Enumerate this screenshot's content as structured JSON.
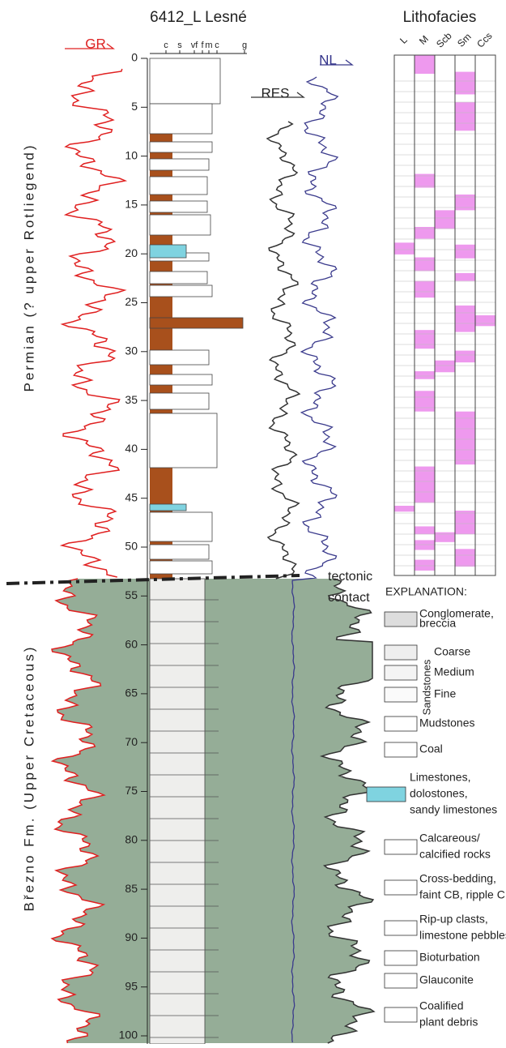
{
  "header": {
    "title": "6412_L Lesné",
    "lithofacies_title": "Lithofacies"
  },
  "curves": {
    "gr": "GR",
    "res": "RES",
    "nl": "NL"
  },
  "grain_size_labels": [
    "c",
    "s",
    "vf",
    "f",
    "m",
    "c",
    "g"
  ],
  "depth_axis": {
    "lim": [
      0,
      100
    ],
    "ticks": [
      0,
      5,
      10,
      15,
      20,
      25,
      30,
      35,
      40,
      45,
      50,
      55,
      60,
      65,
      70,
      75,
      80,
      85,
      90,
      95,
      100
    ]
  },
  "units": {
    "upper": "Permian (? upper Rotliegend)",
    "lower": "Březno Fm. (Upper Cretaceous)"
  },
  "annotation": [
    "tectonic",
    "contact"
  ],
  "lithofacies": {
    "lim": [
      0,
      53
    ],
    "columns": [
      {
        "name": "L",
        "intervals": [
          [
            19.1,
            20.3
          ],
          [
            45.9,
            46.5
          ]
        ]
      },
      {
        "name": "M",
        "intervals": [
          [
            0,
            1.9
          ],
          [
            12.1,
            13.5
          ],
          [
            17.5,
            18.7
          ],
          [
            20.6,
            22
          ],
          [
            23,
            24.7
          ],
          [
            28,
            29.9
          ],
          [
            32.2,
            33
          ],
          [
            34.2,
            36.3
          ],
          [
            41.9,
            45.6
          ],
          [
            48,
            48.8
          ],
          [
            49.4,
            50.4
          ],
          [
            51.4,
            52.5
          ]
        ]
      },
      {
        "name": "Scb",
        "intervals": [
          [
            15.8,
            17.7
          ],
          [
            31.1,
            32.3
          ],
          [
            48.6,
            49.6
          ]
        ]
      },
      {
        "name": "Sm",
        "intervals": [
          [
            1.7,
            4
          ],
          [
            4.8,
            7.7
          ],
          [
            14.2,
            15.8
          ],
          [
            19.3,
            20.7
          ],
          [
            22.2,
            23
          ],
          [
            25.5,
            28.2
          ],
          [
            30.1,
            31.3
          ],
          [
            36.3,
            41.7
          ],
          [
            46.4,
            48.8
          ],
          [
            50.3,
            52.1
          ]
        ]
      },
      {
        "name": "Ccs",
        "intervals": [
          [
            26.5,
            27.6
          ]
        ]
      }
    ]
  },
  "explanation": {
    "title": "EXPLANATION:",
    "sandstones": "Sandstones",
    "items": [
      [
        "Conglomerate,",
        "breccia"
      ],
      [
        "Coarse"
      ],
      [
        "Medium"
      ],
      [
        "Fine"
      ],
      [
        "Mudstones"
      ],
      [
        "Coal"
      ],
      [
        "Limestones,",
        "dolostones,",
        "sandy limestones"
      ],
      [
        "Calcareous/",
        "calcified rocks"
      ],
      [
        "Cross-bedding,",
        "faint CB, ripple CB"
      ],
      [
        "Rip-up clasts,",
        "limestone pebbles"
      ],
      [
        "Bioturbation"
      ],
      [
        "Glauconite"
      ],
      [
        "Coalified",
        "plant debris"
      ]
    ]
  }
}
